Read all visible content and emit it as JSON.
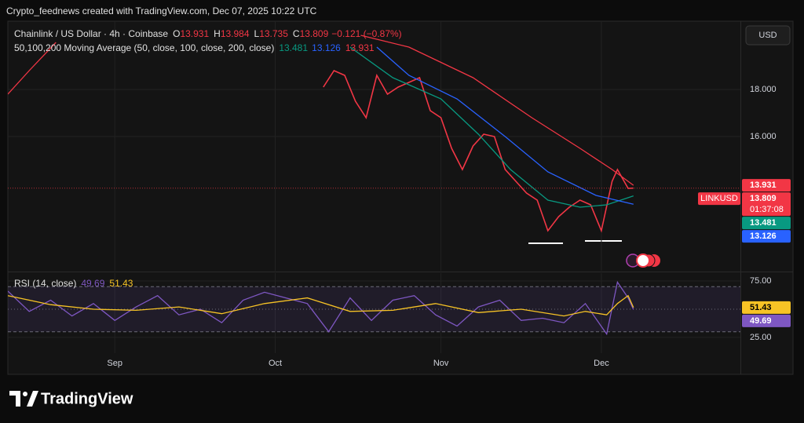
{
  "header": "Crypto_feednews created with TradingView.com, Dec 07, 2025 10:22 UTC",
  "currency": "USD",
  "footer": "TradingView",
  "chart_data": [
    {
      "type": "line",
      "title": "Chainlink / US Dollar · 4h · Coinbase",
      "ohlc": [
        {
          "label": "O",
          "value": 13.931
        },
        {
          "label": "H",
          "value": 13.984
        },
        {
          "label": "L",
          "value": 13.735
        },
        {
          "label": "C",
          "value": 13.809
        }
      ],
      "change": "−0.121 (−0.87%)",
      "indicator": "50,100,200 Moving Average (50, close, 100, close, 200, close)",
      "symbol": "LINKUSD",
      "countdown": "01:37:08",
      "xlim": [
        224,
        361
      ],
      "ylim": [
        10.3,
        20.9
      ],
      "yticks": [
        {
          "value": 16,
          "label": "16.000"
        },
        {
          "value": 18,
          "label": "18.000"
        }
      ],
      "series": [
        {
          "name": "LINKUSD",
          "color": "#f23645",
          "x": [
            283,
            285,
            287,
            289,
            291,
            293,
            295,
            297,
            299,
            301,
            303,
            305,
            307,
            309,
            311,
            313,
            315,
            317,
            319,
            321,
            323,
            325,
            327,
            329,
            331,
            333,
            335,
            337,
            338,
            340,
            341
          ],
          "values": [
            18.1,
            18.8,
            18.6,
            17.5,
            16.8,
            18.6,
            17.8,
            18.1,
            18.3,
            18.5,
            17.1,
            16.8,
            15.5,
            14.6,
            15.6,
            16.1,
            16.0,
            14.6,
            14.1,
            13.6,
            13.3,
            12.0,
            12.6,
            13.0,
            13.3,
            13.1,
            12.0,
            14.1,
            14.6,
            13.8,
            13.809
          ]
        },
        {
          "color": "#089981",
          "x": [
            288,
            296,
            305,
            312,
            318,
            325,
            331,
            336,
            341
          ],
          "values": [
            19.8,
            18.5,
            17.6,
            16.1,
            14.6,
            13.3,
            13.0,
            13.1,
            13.481
          ]
        },
        {
          "color": "#2962ff",
          "x": [
            293,
            299,
            308,
            317,
            325,
            334,
            341
          ],
          "values": [
            19.8,
            18.6,
            17.6,
            16.0,
            14.5,
            13.5,
            13.126
          ]
        },
        {
          "color": "#f23645",
          "x": [
            224,
            228,
            233,
            237,
            290,
            299,
            311,
            322,
            331,
            337,
            341
          ],
          "values": [
            17.8,
            18.8,
            20.0,
            null,
            20.3,
            19.8,
            18.5,
            16.8,
            15.5,
            14.6,
            13.931
          ]
        }
      ]
    },
    {
      "type": "line",
      "title": "RSI (14, close)",
      "xlim": [
        224,
        361
      ],
      "ylim": [
        11,
        82
      ],
      "yticks": [
        {
          "value": 75,
          "label": "75.00"
        },
        {
          "value": 25,
          "label": "25.00"
        }
      ],
      "xticks": [
        {
          "value": 244,
          "label": "Sep"
        },
        {
          "value": 274,
          "label": "Oct"
        },
        {
          "value": 305,
          "label": "Nov"
        },
        {
          "value": 335,
          "label": "Dec"
        }
      ],
      "levels": [
        70,
        50,
        30
      ],
      "series": [
        {
          "color": "#7e57c2",
          "x": [
            224,
            228,
            232,
            236,
            240,
            244,
            248,
            252,
            256,
            260,
            264,
            268,
            272,
            276,
            280,
            284,
            288,
            292,
            296,
            300,
            304,
            308,
            312,
            316,
            320,
            324,
            328,
            332,
            336,
            338,
            340,
            341
          ],
          "values": [
            66,
            48,
            58,
            44,
            55,
            40,
            52,
            62,
            45,
            50,
            38,
            58,
            65,
            60,
            55,
            30,
            60,
            40,
            58,
            62,
            45,
            35,
            52,
            58,
            40,
            42,
            38,
            55,
            28,
            74,
            60,
            49.69
          ]
        },
        {
          "color": "#f7c325",
          "x": [
            224,
            232,
            240,
            248,
            256,
            264,
            272,
            280,
            288,
            296,
            304,
            312,
            320,
            328,
            332,
            336,
            338,
            340,
            341
          ],
          "values": [
            62,
            54,
            50,
            49,
            52,
            46,
            55,
            60,
            48,
            49,
            55,
            47,
            50,
            44,
            48,
            45,
            55,
            62,
            51.43
          ]
        }
      ]
    }
  ]
}
